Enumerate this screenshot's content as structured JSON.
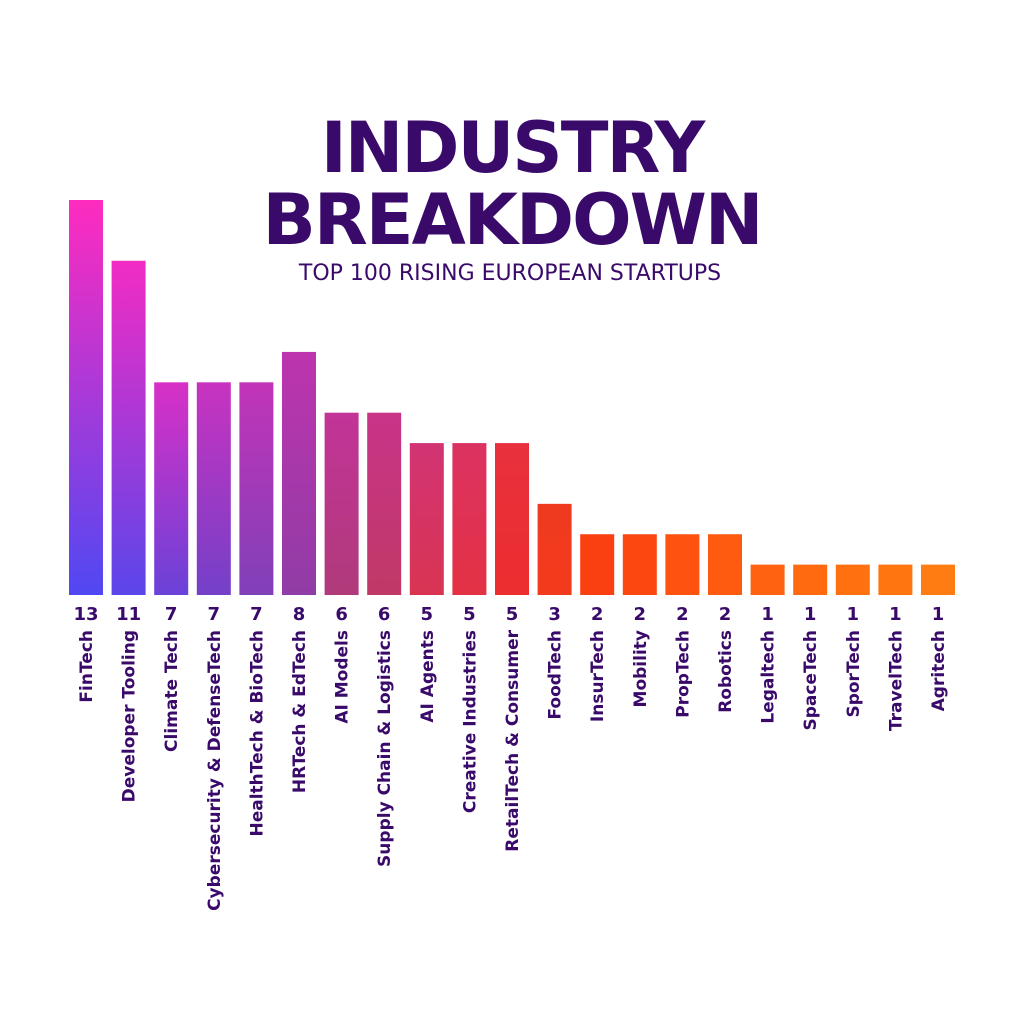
{
  "chart_data": {
    "type": "bar",
    "title": [
      "INDUSTRY",
      "BREAKDOWN"
    ],
    "subtitle": "TOP 100 RISING EUROPEAN STARTUPS",
    "categories": [
      "FinTech",
      "Developer Tooling",
      "Climate Tech",
      "Cybersecurity & DefenseTech",
      "HealthTech & BioTech",
      "HRTech & EdTech",
      "AI Models",
      "Supply Chain & Logistics",
      "AI Agents",
      "Creative Industries",
      "RetailTech & Consumer",
      "FoodTech",
      "InsurTech",
      "Mobility",
      "PropTech",
      "Robotics",
      "Legaltech",
      "SpaceTech",
      "SporTech",
      "TravelTech",
      "Agritech"
    ],
    "values": [
      13,
      11,
      7,
      7,
      7,
      8,
      6,
      6,
      5,
      5,
      5,
      3,
      2,
      2,
      2,
      2,
      1,
      1,
      1,
      1,
      1
    ],
    "colors": [
      [
        "#ff2bbf",
        "#5048f2"
      ],
      [
        "#f22cc4",
        "#5a46ea"
      ],
      [
        "#d830c6",
        "#6a42d8"
      ],
      [
        "#c833c0",
        "#7440c8"
      ],
      [
        "#c234b8",
        "#8040b8"
      ],
      [
        "#bd34ae",
        "#903ca6"
      ],
      [
        "#c23498",
        "#b03a7a"
      ],
      [
        "#c83488",
        "#c03866"
      ],
      [
        "#d23474",
        "#d83452"
      ],
      [
        "#dc3262",
        "#e23244"
      ],
      [
        "#e8303e",
        "#ec2e2e"
      ],
      [
        "#f03a20",
        "#f23a1c"
      ],
      [
        "#fa4010",
        "#fa4010"
      ],
      [
        "#fc4810",
        "#fc4810"
      ],
      [
        "#fd5210",
        "#fd5210"
      ],
      [
        "#fe5a10",
        "#fe5a10"
      ],
      [
        "#ff6210",
        "#ff6210"
      ],
      [
        "#ff6a10",
        "#ff6a10"
      ],
      [
        "#ff7010",
        "#ff7010"
      ],
      [
        "#ff7610",
        "#ff7610"
      ],
      [
        "#ff7c12",
        "#ff7c12"
      ]
    ],
    "text_color": "#3a0a6b"
  }
}
